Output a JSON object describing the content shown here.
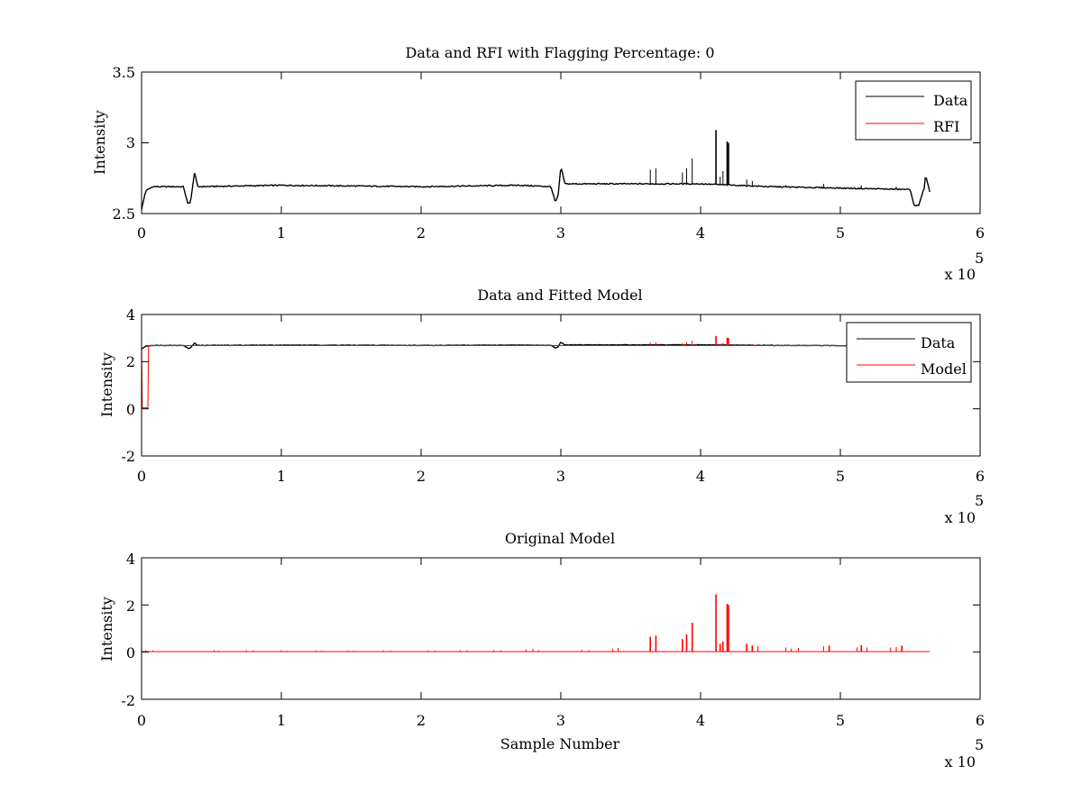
{
  "chart_data": [
    {
      "type": "line",
      "title": "Data and RFI with Flagging Percentage: 0",
      "xlabel": "",
      "ylabel": "Intensity",
      "xlim": [
        0,
        600000
      ],
      "ylim": [
        2.5,
        3.5
      ],
      "xticks": [
        0,
        1,
        2,
        3,
        4,
        5,
        6
      ],
      "yticks": [
        "2.5",
        "3",
        "3.5"
      ],
      "x_exponent_label": "x 10",
      "x_exponent": "5",
      "legend": {
        "placement": "top-right",
        "entries": [
          "Data",
          "RFI"
        ]
      },
      "series": [
        {
          "name": "Data",
          "color": "#000000",
          "baseline": [
            [
              0,
              2.53
            ],
            [
              3000,
              2.66
            ],
            [
              8000,
              2.69
            ],
            [
              30000,
              2.69
            ],
            [
              33000,
              2.57
            ],
            [
              35000,
              2.58
            ],
            [
              37000,
              2.72
            ],
            [
              38000,
              2.8
            ],
            [
              40000,
              2.69
            ],
            [
              100000,
              2.7
            ],
            [
              200000,
              2.69
            ],
            [
              270000,
              2.7
            ],
            [
              293000,
              2.69
            ],
            [
              296000,
              2.58
            ],
            [
              298000,
              2.62
            ],
            [
              300000,
              2.83
            ],
            [
              303000,
              2.71
            ],
            [
              350000,
              2.71
            ],
            [
              400000,
              2.71
            ],
            [
              450000,
              2.69
            ],
            [
              500000,
              2.68
            ],
            [
              550000,
              2.67
            ],
            [
              553000,
              2.55
            ],
            [
              556000,
              2.56
            ],
            [
              560000,
              2.68
            ],
            [
              561000,
              2.77
            ],
            [
              564000,
              2.65
            ]
          ],
          "spikes": [
            [
              364000,
              2.81
            ],
            [
              368000,
              2.82
            ],
            [
              387000,
              2.79
            ],
            [
              390000,
              2.82
            ],
            [
              394000,
              2.89
            ],
            [
              411000,
              3.09
            ],
            [
              414000,
              2.76
            ],
            [
              416000,
              2.8
            ],
            [
              419000,
              3.01
            ],
            [
              420000,
              3.0
            ],
            [
              433000,
              2.74
            ],
            [
              437000,
              2.73
            ],
            [
              461000,
              2.7
            ],
            [
              488000,
              2.71
            ],
            [
              515000,
              2.7
            ],
            [
              540000,
              2.69
            ]
          ]
        },
        {
          "name": "RFI",
          "color": "#ff0000"
        }
      ]
    },
    {
      "type": "line",
      "title": "Data and Fitted Model",
      "xlabel": "",
      "ylabel": "Intensity",
      "xlim": [
        0,
        600000
      ],
      "ylim": [
        -2,
        4
      ],
      "xticks": [
        0,
        1,
        2,
        3,
        4,
        5,
        6
      ],
      "yticks": [
        "-2",
        "0",
        "2",
        "4"
      ],
      "x_exponent_label": "x 10",
      "x_exponent": "5",
      "legend": {
        "placement": "top-right",
        "entries": [
          "Data",
          "Model"
        ]
      },
      "series": [
        {
          "name": "Data",
          "color": "#000000",
          "baseline": [
            [
              0,
              2.53
            ],
            [
              3000,
              2.66
            ],
            [
              8000,
              2.69
            ],
            [
              30000,
              2.69
            ],
            [
              33000,
              2.57
            ],
            [
              35000,
              2.58
            ],
            [
              37000,
              2.72
            ],
            [
              38000,
              2.8
            ],
            [
              40000,
              2.69
            ],
            [
              100000,
              2.7
            ],
            [
              200000,
              2.69
            ],
            [
              270000,
              2.7
            ],
            [
              293000,
              2.69
            ],
            [
              296000,
              2.58
            ],
            [
              298000,
              2.62
            ],
            [
              300000,
              2.83
            ],
            [
              303000,
              2.71
            ],
            [
              350000,
              2.71
            ],
            [
              400000,
              2.71
            ],
            [
              450000,
              2.69
            ],
            [
              500000,
              2.68
            ],
            [
              550000,
              2.67
            ],
            [
              553000,
              2.55
            ],
            [
              556000,
              2.56
            ],
            [
              560000,
              2.68
            ],
            [
              561000,
              2.77
            ],
            [
              564000,
              2.65
            ]
          ]
        },
        {
          "name": "Model",
          "color": "#ff0000",
          "baseline": [
            [
              0,
              2.68
            ],
            [
              500,
              0.05
            ],
            [
              4500,
              0.05
            ],
            [
              5000,
              2.68
            ],
            [
              564000,
              2.68
            ]
          ],
          "spikes": [
            [
              364000,
              2.81
            ],
            [
              368000,
              2.82
            ],
            [
              387000,
              2.79
            ],
            [
              390000,
              2.82
            ],
            [
              394000,
              2.89
            ],
            [
              411000,
              3.09
            ],
            [
              414000,
              2.76
            ],
            [
              416000,
              2.8
            ],
            [
              419000,
              3.01
            ],
            [
              420000,
              3.0
            ],
            [
              433000,
              2.74
            ],
            [
              437000,
              2.73
            ],
            [
              461000,
              2.7
            ],
            [
              488000,
              2.71
            ],
            [
              515000,
              2.7
            ],
            [
              540000,
              2.69
            ]
          ]
        }
      ]
    },
    {
      "type": "line",
      "title": "Original Model",
      "xlabel": "Sample Number",
      "ylabel": "Intensity",
      "xlim": [
        0,
        600000
      ],
      "ylim": [
        -2,
        4
      ],
      "xticks": [
        0,
        1,
        2,
        3,
        4,
        5,
        6
      ],
      "yticks": [
        "-2",
        "0",
        "2",
        "4"
      ],
      "x_exponent_label": "x 10",
      "x_exponent": "5",
      "series": [
        {
          "name": "",
          "color": "#ff0000",
          "baseline": [
            [
              0,
              0.02
            ],
            [
              564000,
              0.02
            ]
          ],
          "spikes": [
            [
              3000,
              0.08
            ],
            [
              8000,
              0.07
            ],
            [
              52000,
              0.08
            ],
            [
              55000,
              0.06
            ],
            [
              75000,
              0.08
            ],
            [
              80000,
              0.07
            ],
            [
              100000,
              0.08
            ],
            [
              104000,
              0.06
            ],
            [
              125000,
              0.07
            ],
            [
              129000,
              0.06
            ],
            [
              148000,
              0.07
            ],
            [
              152000,
              0.06
            ],
            [
              173000,
              0.07
            ],
            [
              178000,
              0.06
            ],
            [
              205000,
              0.07
            ],
            [
              210000,
              0.06
            ],
            [
              228000,
              0.08
            ],
            [
              233000,
              0.07
            ],
            [
              252000,
              0.08
            ],
            [
              257000,
              0.07
            ],
            [
              275000,
              0.12
            ],
            [
              280000,
              0.15
            ],
            [
              284000,
              0.08
            ],
            [
              315000,
              0.1
            ],
            [
              320000,
              0.08
            ],
            [
              337000,
              0.15
            ],
            [
              341000,
              0.18
            ],
            [
              364000,
              0.65
            ],
            [
              368000,
              0.7
            ],
            [
              387000,
              0.55
            ],
            [
              390000,
              0.75
            ],
            [
              394000,
              1.25
            ],
            [
              411000,
              2.45
            ],
            [
              414000,
              0.35
            ],
            [
              416000,
              0.45
            ],
            [
              419000,
              2.05
            ],
            [
              420000,
              2.0
            ],
            [
              433000,
              0.35
            ],
            [
              437000,
              0.28
            ],
            [
              441000,
              0.25
            ],
            [
              461000,
              0.2
            ],
            [
              465000,
              0.15
            ],
            [
              470000,
              0.18
            ],
            [
              488000,
              0.25
            ],
            [
              492000,
              0.28
            ],
            [
              512000,
              0.2
            ],
            [
              515000,
              0.3
            ],
            [
              519000,
              0.2
            ],
            [
              536000,
              0.2
            ],
            [
              540000,
              0.22
            ],
            [
              544000,
              0.28
            ]
          ]
        }
      ]
    }
  ]
}
